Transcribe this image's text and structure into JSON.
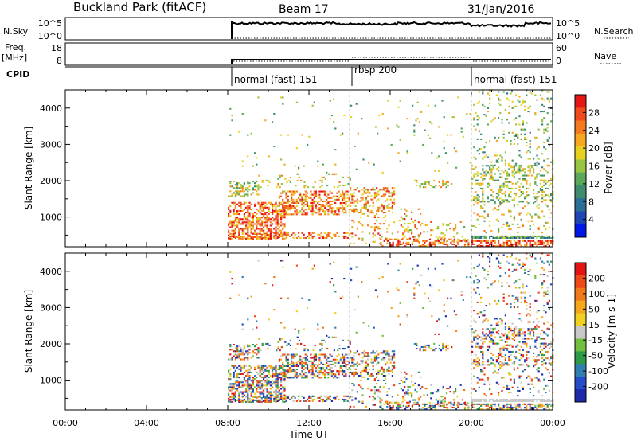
{
  "header": {
    "site": "Buckland Park (fitACF)",
    "beam": "Beam 17",
    "date": "31/Jan/2016"
  },
  "side_labels": {
    "nsky": "N.Sky",
    "freq_line1": "Freq.",
    "freq_line2": "[MHz]",
    "cpid": "CPID",
    "nsearch": "N.Search",
    "nave": "Nave"
  },
  "colors": {
    "power": [
      "#0018e6",
      "#1e46b4",
      "#2b6f96",
      "#3f8d6e",
      "#5aa85a",
      "#99c640",
      "#e6d21e",
      "#f6a81e",
      "#f57a1e",
      "#f04a1e",
      "#e61616"
    ],
    "velocity": [
      "#1e2aa8",
      "#274cc8",
      "#2f7fb0",
      "#2e9a48",
      "#72c040",
      "#c8c8c8",
      "#f0d020",
      "#f5a81e",
      "#f07a1a",
      "#ee4a18",
      "#e41414"
    ]
  },
  "chart_data": [
    {
      "panel": "sky-noise",
      "type": "line",
      "left_ticks": [
        "10^5",
        "10^0"
      ],
      "right_ticks": [
        "10^5",
        "10^0"
      ]
    },
    {
      "panel": "frequency",
      "type": "line",
      "left_ticks": [
        "18",
        "8"
      ],
      "right_ticks": [
        "60",
        "0"
      ]
    },
    {
      "panel": "cpid",
      "type": "table",
      "segments": [
        {
          "label": "normal (fast) 151",
          "start": "08:00",
          "end": "14:00"
        },
        {
          "label": "rbsp 200",
          "start": "14:00",
          "end": "20:00"
        },
        {
          "label": "normal (fast) 151",
          "start": "20:00",
          "end": "00:00"
        }
      ]
    },
    {
      "panel": "power",
      "type": "heatmap",
      "ylabel": "Slant Range [km]",
      "yticks": [
        "4000",
        "3000",
        "2000",
        "1000"
      ],
      "ylim": [
        180,
        4500
      ],
      "colorbar_label": "Power [dB]",
      "colorbar_ticks": [
        "28",
        "24",
        "20",
        "16",
        "12",
        "8",
        "4"
      ],
      "clim": [
        0,
        30
      ]
    },
    {
      "panel": "velocity",
      "type": "heatmap",
      "ylabel": "Slant Range [km]",
      "yticks": [
        "4000",
        "3000",
        "2000",
        "1000"
      ],
      "ylim": [
        180,
        4500
      ],
      "colorbar_label": "Velocity [m s-1]",
      "colorbar_ticks": [
        "200",
        "100",
        "50",
        "15",
        "-15",
        "-50",
        "-100",
        "-200"
      ]
    }
  ],
  "xaxis": {
    "label": "Time UT",
    "ticks": [
      "00:00",
      "04:00",
      "08:00",
      "12:00",
      "16:00",
      "20:00",
      "00:00"
    ]
  }
}
